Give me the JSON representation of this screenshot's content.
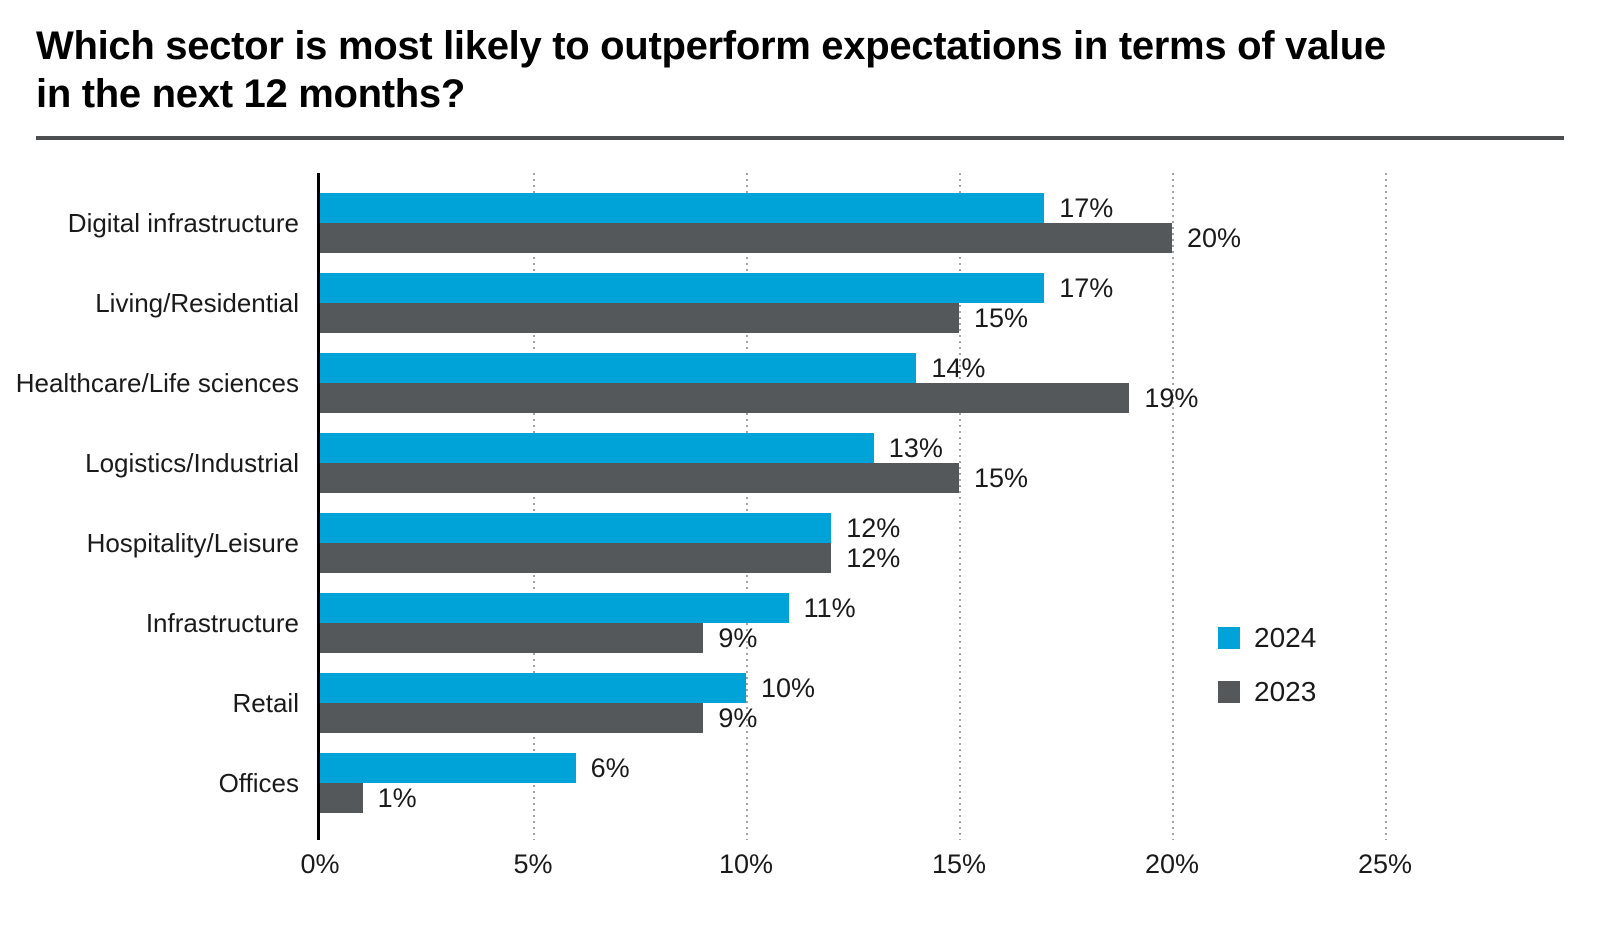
{
  "header": {
    "title_lines": [
      "Which sector is most likely to outperform expectations in terms of value",
      "in the next 12 months?"
    ]
  },
  "chart_data": {
    "type": "bar",
    "orientation": "horizontal",
    "title": "Which sector is most likely to outperform expectations in terms of value in the next 12 months?",
    "xlabel": "",
    "ylabel": "",
    "categories": [
      "Digital infrastructure",
      "Living/Residential",
      "Healthcare/Life sciences",
      "Logistics/Industrial",
      "Hospitality/Leisure",
      "Infrastructure",
      "Retail",
      "Offices"
    ],
    "series": [
      {
        "name": "2024",
        "color": "#00a3d7",
        "values": [
          17,
          17,
          14,
          13,
          12,
          11,
          10,
          6
        ],
        "labels": [
          "17%",
          "17%",
          "14%",
          "13%",
          "12%",
          "11%",
          "10%",
          "6%"
        ]
      },
      {
        "name": "2023",
        "color": "#55585b",
        "values": [
          20,
          15,
          19,
          15,
          12,
          9,
          9,
          1
        ],
        "labels": [
          "20%",
          "15%",
          "19%",
          "15%",
          "12%",
          "9%",
          "9%",
          "1%"
        ]
      }
    ],
    "value_suffix": "%",
    "x_axis": {
      "tick_values": [
        0,
        5,
        10,
        15,
        20,
        25
      ],
      "tick_labels": [
        "0%",
        "5%",
        "10%",
        "15%",
        "20%",
        "25%"
      ]
    },
    "xlim": [
      0,
      28.4
    ],
    "grid": "vertical-dotted",
    "legend": {
      "position": "right-middle",
      "entries": [
        "2024",
        "2023"
      ]
    }
  }
}
